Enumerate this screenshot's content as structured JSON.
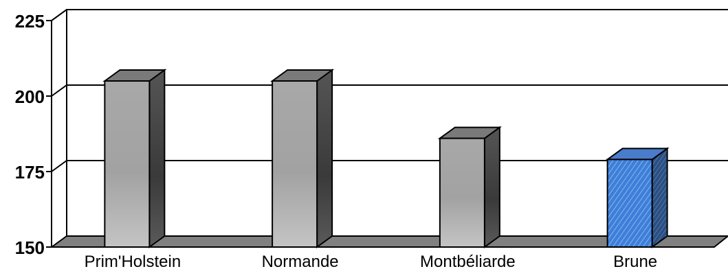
{
  "chart_data": {
    "type": "bar",
    "categories": [
      "Prim'Holstein",
      "Normande",
      "Montbéliarde",
      "Brune"
    ],
    "values": [
      205,
      205,
      186,
      179
    ],
    "ylim": [
      150,
      225
    ],
    "yticks": [
      150,
      175,
      200,
      225
    ],
    "grid": true,
    "style": "3d-column",
    "colors": {
      "bar_front": "#b4b4b4",
      "bar_side": "#5e5e5e",
      "bar_top": "#7a7a7a",
      "highlight_front": "#3d7fd9",
      "highlight_side": "#2b4f80",
      "highlight_top": "#4a7ccc",
      "floor": "#808080"
    },
    "highlight_index": 3
  }
}
